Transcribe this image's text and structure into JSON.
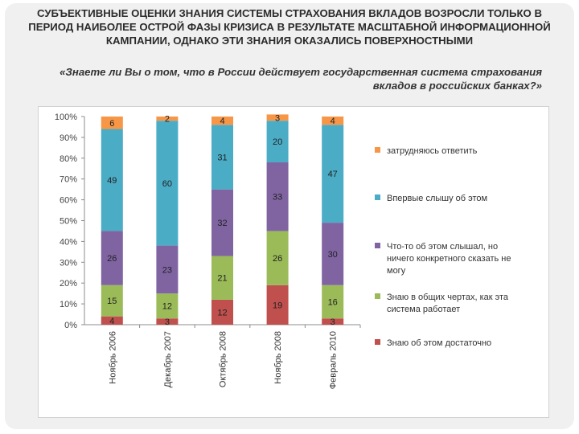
{
  "slide": {
    "title": "СУБЪЕКТИВНЫЕ ОЦЕНКИ ЗНАНИЯ СИСТЕМЫ СТРАХОВАНИЯ ВКЛАДОВ ВОЗРОСЛИ ТОЛЬКО В ПЕРИОД НАИБОЛЕЕ ОСТРОЙ ФАЗЫ КРИЗИСА В РЕЗУЛЬТАТЕ МАСШТАБНОЙ ИНФОРМАЦИОННОЙ КАМПАНИИ, ОДНАКО ЭТИ ЗНАНИЯ ОКАЗАЛИСЬ ПОВЕРХНОСТНЫМИ",
    "subtitle": "«Знаете ли Вы о том, что в России действует государственная система страхования вкладов в российских банках?»"
  },
  "chart_data": {
    "type": "bar",
    "stacked": true,
    "percent_stacked": true,
    "categories": [
      "Ноябрь 2006",
      "Декабрь 2007",
      "Октябрь 2008",
      "Ноябрь 2008",
      "Февраль 2010"
    ],
    "ylim": [
      0,
      100
    ],
    "yticks": [
      "0%",
      "10%",
      "20%",
      "30%",
      "40%",
      "50%",
      "60%",
      "70%",
      "80%",
      "90%",
      "100%"
    ],
    "grid": false,
    "legend_position": "right",
    "series": [
      {
        "name": "Знаю об этом достаточно",
        "color": "#c0504d",
        "values": [
          4,
          3,
          12,
          19,
          3
        ]
      },
      {
        "name": "Знаю в общих чертах, как эта система работает",
        "color": "#9bbb59",
        "values": [
          15,
          12,
          21,
          26,
          16
        ]
      },
      {
        "name": "Что-то об этом слышал, но ничего конкретного сказать не могу",
        "color": "#8064a2",
        "values": [
          26,
          23,
          32,
          33,
          30
        ]
      },
      {
        "name": "Впервые слышу об этом",
        "color": "#4bacc6",
        "values": [
          49,
          60,
          31,
          20,
          47
        ]
      },
      {
        "name": "затрудняюсь ответить",
        "color": "#f79646",
        "values": [
          6,
          2,
          4,
          3,
          4
        ]
      }
    ],
    "legend_order": [
      4,
      3,
      2,
      1,
      0
    ],
    "legend_lines": [
      [
        "затрудняюсь ответить"
      ],
      [
        "Впервые слышу об этом"
      ],
      [
        "Что-то об этом слышал, но",
        "ничего конкретного сказать не",
        "могу"
      ],
      [
        "Знаю в общих чертах, как эта",
        "система работает"
      ],
      [
        "Знаю об этом достаточно"
      ]
    ]
  }
}
